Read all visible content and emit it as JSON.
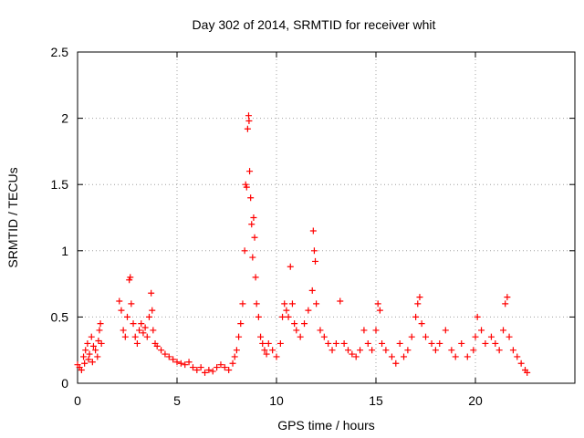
{
  "chart_data": {
    "type": "scatter",
    "title": "Day 302 of 2014, SRMTID for receiver whit",
    "xlabel": "GPS time / hours",
    "ylabel": "SRMTID / TECUs",
    "xlim": [
      0,
      25
    ],
    "ylim": [
      0,
      2.5
    ],
    "xticks": [
      0,
      5,
      10,
      15,
      20
    ],
    "yticks": [
      0,
      0.5,
      1,
      1.5,
      2,
      2.5
    ],
    "xtick_labels": [
      "0",
      "5",
      "10",
      "15",
      "20"
    ],
    "ytick_labels": [
      "0",
      "0.5",
      "1",
      "1.5",
      "2",
      "2.5"
    ],
    "grid": true,
    "marker": "+",
    "series": [
      {
        "name": "SRMTID",
        "color": "#ff0000",
        "points": [
          [
            0.0,
            0.14
          ],
          [
            0.1,
            0.12
          ],
          [
            0.2,
            0.1
          ],
          [
            0.3,
            0.2
          ],
          [
            0.35,
            0.15
          ],
          [
            0.4,
            0.25
          ],
          [
            0.5,
            0.3
          ],
          [
            0.55,
            0.18
          ],
          [
            0.6,
            0.22
          ],
          [
            0.7,
            0.35
          ],
          [
            0.75,
            0.16
          ],
          [
            0.8,
            0.28
          ],
          [
            0.9,
            0.25
          ],
          [
            1.0,
            0.2
          ],
          [
            1.05,
            0.32
          ],
          [
            1.1,
            0.4
          ],
          [
            1.15,
            0.45
          ],
          [
            1.2,
            0.3
          ],
          [
            2.1,
            0.62
          ],
          [
            2.2,
            0.55
          ],
          [
            2.3,
            0.4
          ],
          [
            2.4,
            0.35
          ],
          [
            2.5,
            0.5
          ],
          [
            2.6,
            0.78
          ],
          [
            2.65,
            0.8
          ],
          [
            2.7,
            0.6
          ],
          [
            2.8,
            0.45
          ],
          [
            2.9,
            0.35
          ],
          [
            3.0,
            0.3
          ],
          [
            3.1,
            0.4
          ],
          [
            3.2,
            0.45
          ],
          [
            3.3,
            0.38
          ],
          [
            3.4,
            0.42
          ],
          [
            3.5,
            0.35
          ],
          [
            3.6,
            0.5
          ],
          [
            3.7,
            0.68
          ],
          [
            3.75,
            0.55
          ],
          [
            3.8,
            0.4
          ],
          [
            3.9,
            0.3
          ],
          [
            4.0,
            0.28
          ],
          [
            4.2,
            0.25
          ],
          [
            4.4,
            0.22
          ],
          [
            4.6,
            0.2
          ],
          [
            4.8,
            0.18
          ],
          [
            5.0,
            0.16
          ],
          [
            5.2,
            0.15
          ],
          [
            5.4,
            0.14
          ],
          [
            5.6,
            0.16
          ],
          [
            5.8,
            0.12
          ],
          [
            6.0,
            0.1
          ],
          [
            6.2,
            0.12
          ],
          [
            6.4,
            0.08
          ],
          [
            6.6,
            0.1
          ],
          [
            6.8,
            0.09
          ],
          [
            7.0,
            0.12
          ],
          [
            7.2,
            0.14
          ],
          [
            7.4,
            0.12
          ],
          [
            7.6,
            0.1
          ],
          [
            7.8,
            0.15
          ],
          [
            7.9,
            0.2
          ],
          [
            8.0,
            0.25
          ],
          [
            8.1,
            0.35
          ],
          [
            8.2,
            0.45
          ],
          [
            8.3,
            0.6
          ],
          [
            8.4,
            1.0
          ],
          [
            8.45,
            1.5
          ],
          [
            8.5,
            1.48
          ],
          [
            8.55,
            1.92
          ],
          [
            8.6,
            2.02
          ],
          [
            8.62,
            1.98
          ],
          [
            8.65,
            1.6
          ],
          [
            8.7,
            1.4
          ],
          [
            8.75,
            1.2
          ],
          [
            8.8,
            0.95
          ],
          [
            8.85,
            1.25
          ],
          [
            8.9,
            1.1
          ],
          [
            8.95,
            0.8
          ],
          [
            9.0,
            0.6
          ],
          [
            9.1,
            0.5
          ],
          [
            9.2,
            0.35
          ],
          [
            9.3,
            0.3
          ],
          [
            9.4,
            0.25
          ],
          [
            9.5,
            0.22
          ],
          [
            9.6,
            0.3
          ],
          [
            9.8,
            0.25
          ],
          [
            10.0,
            0.2
          ],
          [
            10.2,
            0.3
          ],
          [
            10.3,
            0.5
          ],
          [
            10.4,
            0.6
          ],
          [
            10.5,
            0.55
          ],
          [
            10.6,
            0.5
          ],
          [
            10.7,
            0.88
          ],
          [
            10.8,
            0.6
          ],
          [
            10.9,
            0.45
          ],
          [
            11.0,
            0.4
          ],
          [
            11.2,
            0.35
          ],
          [
            11.4,
            0.45
          ],
          [
            11.6,
            0.55
          ],
          [
            11.8,
            0.7
          ],
          [
            11.85,
            1.15
          ],
          [
            11.9,
            1.0
          ],
          [
            11.95,
            0.92
          ],
          [
            12.0,
            0.6
          ],
          [
            12.2,
            0.4
          ],
          [
            12.4,
            0.35
          ],
          [
            12.6,
            0.3
          ],
          [
            12.8,
            0.25
          ],
          [
            13.0,
            0.3
          ],
          [
            13.2,
            0.62
          ],
          [
            13.4,
            0.3
          ],
          [
            13.6,
            0.25
          ],
          [
            13.8,
            0.22
          ],
          [
            14.0,
            0.2
          ],
          [
            14.2,
            0.25
          ],
          [
            14.4,
            0.4
          ],
          [
            14.6,
            0.3
          ],
          [
            14.8,
            0.25
          ],
          [
            15.0,
            0.4
          ],
          [
            15.1,
            0.6
          ],
          [
            15.2,
            0.55
          ],
          [
            15.3,
            0.3
          ],
          [
            15.5,
            0.25
          ],
          [
            15.8,
            0.2
          ],
          [
            16.0,
            0.15
          ],
          [
            16.2,
            0.3
          ],
          [
            16.4,
            0.2
          ],
          [
            16.6,
            0.25
          ],
          [
            16.8,
            0.35
          ],
          [
            17.0,
            0.5
          ],
          [
            17.1,
            0.6
          ],
          [
            17.2,
            0.65
          ],
          [
            17.3,
            0.45
          ],
          [
            17.5,
            0.35
          ],
          [
            17.8,
            0.3
          ],
          [
            18.0,
            0.25
          ],
          [
            18.2,
            0.3
          ],
          [
            18.5,
            0.4
          ],
          [
            18.8,
            0.25
          ],
          [
            19.0,
            0.2
          ],
          [
            19.3,
            0.3
          ],
          [
            19.6,
            0.2
          ],
          [
            19.9,
            0.25
          ],
          [
            20.0,
            0.35
          ],
          [
            20.1,
            0.5
          ],
          [
            20.3,
            0.4
          ],
          [
            20.5,
            0.3
          ],
          [
            20.8,
            0.35
          ],
          [
            21.0,
            0.3
          ],
          [
            21.2,
            0.25
          ],
          [
            21.4,
            0.4
          ],
          [
            21.5,
            0.6
          ],
          [
            21.6,
            0.65
          ],
          [
            21.7,
            0.35
          ],
          [
            21.9,
            0.25
          ],
          [
            22.1,
            0.2
          ],
          [
            22.3,
            0.15
          ],
          [
            22.5,
            0.1
          ],
          [
            22.6,
            0.08
          ]
        ]
      }
    ]
  }
}
